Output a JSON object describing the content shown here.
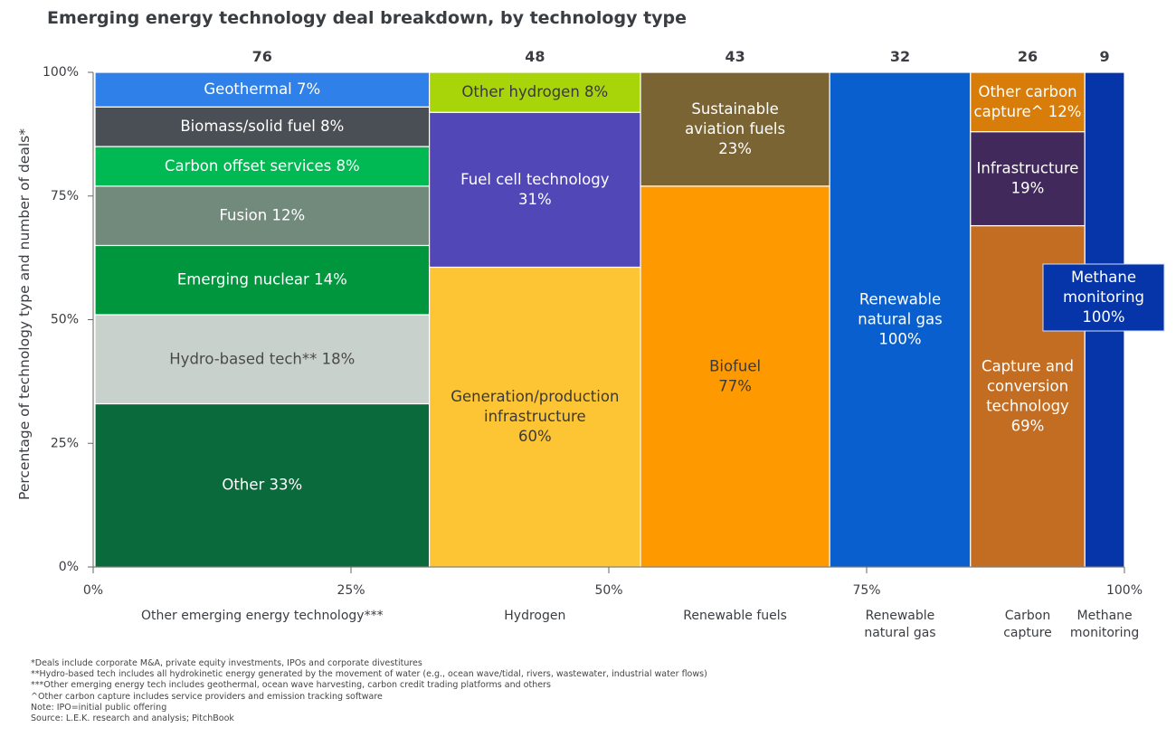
{
  "chart_data": {
    "type": "marimekko",
    "title": "Emerging energy technology deal breakdown, by technology type",
    "ylabel": "Percentage of technology type and number of deals*",
    "xlabel": "",
    "y_ticks": [
      "0%",
      "25%",
      "50%",
      "75%",
      "100%"
    ],
    "x_ticks": [
      "0%",
      "25%",
      "50%",
      "75%",
      "100%"
    ],
    "ylim": [
      0,
      100
    ],
    "xlim": [
      0,
      100
    ],
    "columns": [
      {
        "category": "Other emerging energy technology***",
        "deals": 76,
        "segments": [
          {
            "label": "Other 33%",
            "value": 33,
            "color": "#0b6a3c",
            "text_color": "#ffffff"
          },
          {
            "label": "Hydro-based tech** 18%",
            "value": 18,
            "color": "#c9d1cd",
            "text_color": "#4a4a4a"
          },
          {
            "label": "Emerging nuclear 14%",
            "value": 14,
            "color": "#00963e",
            "text_color": "#ffffff"
          },
          {
            "label": "Fusion 12%",
            "value": 12,
            "color": "#728a7c",
            "text_color": "#ffffff"
          },
          {
            "label": "Carbon offset services 8%",
            "value": 8,
            "color": "#00b953",
            "text_color": "#ffffff"
          },
          {
            "label": "Biomass/solid fuel 8%",
            "value": 8,
            "color": "#4a4f55",
            "text_color": "#ffffff"
          },
          {
            "label": "Geothermal 7%",
            "value": 7,
            "color": "#2f80e8",
            "text_color": "#ffffff"
          }
        ]
      },
      {
        "category": "Hydrogen",
        "deals": 48,
        "segments": [
          {
            "label": "Generation/production\ninfrastructure\n60%",
            "value": 60,
            "color": "#fdc534",
            "text_color": "#3a3a3a"
          },
          {
            "label": "Fuel cell technology\n31%",
            "value": 31,
            "color": "#5147b6",
            "text_color": "#ffffff"
          },
          {
            "label": "Other hydrogen 8%",
            "value": 8,
            "color": "#a8d40a",
            "text_color": "#3a3a3a"
          }
        ]
      },
      {
        "category": "Renewable fuels",
        "deals": 43,
        "segments": [
          {
            "label": "Biofuel\n77%",
            "value": 77,
            "color": "#ff9900",
            "text_color": "#3a3a3a"
          },
          {
            "label": "Sustainable\naviation fuels\n23%",
            "value": 23,
            "color": "#7a6434",
            "text_color": "#ffffff"
          }
        ]
      },
      {
        "category": "Renewable\nnatural gas",
        "deals": 32,
        "segments": [
          {
            "label": "Renewable\nnatural gas\n100%",
            "value": 100,
            "color": "#0a5fce",
            "text_color": "#ffffff"
          }
        ]
      },
      {
        "category": "Carbon\ncapture",
        "deals": 26,
        "segments": [
          {
            "label": "Capture and\nconversion\ntechnology\n69%",
            "value": 69,
            "color": "#c26d22",
            "text_color": "#ffffff"
          },
          {
            "label": "Infrastructure\n19%",
            "value": 19,
            "color": "#42295c",
            "text_color": "#ffffff"
          },
          {
            "label": "Other carbon\ncapture^ 12%",
            "value": 12,
            "color": "#d87d0a",
            "text_color": "#ffffff"
          }
        ]
      },
      {
        "category": "Methane\nmonitoring",
        "deals": 9,
        "segments": [
          {
            "label": "Methane\nmonitoring\n100%",
            "value": 100,
            "color": "#0535a8",
            "text_color": "#ffffff",
            "callout": true
          }
        ]
      }
    ],
    "grid": false,
    "legend": "none"
  },
  "notes": [
    "*Deals include corporate M&A, private equity investments, IPOs and corporate divestitures",
    "**Hydro-based tech includes all hydrokinetic energy generated by the movement of water (e.g., ocean wave/tidal, rivers, wastewater, industrial water flows)",
    "***Other emerging energy tech includes geothermal, ocean wave harvesting, carbon credit trading platforms and others",
    "^Other carbon capture includes service providers and emission tracking software",
    "Note: IPO=initial public offering",
    "Source: L.E.K. research and analysis; PitchBook"
  ]
}
